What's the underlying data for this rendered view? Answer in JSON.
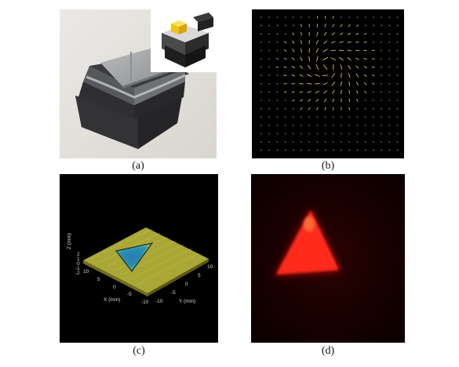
{
  "figure": {
    "captions": {
      "a": "(a)",
      "b": "(b)",
      "c": "(c)",
      "d": "(d)"
    },
    "panel_c": {
      "x_axis_label": "X (mm)",
      "y_axis_label": "Y (mm)",
      "z_axis_label": "Z (mm)",
      "x_ticks": [
        "-10",
        "-5",
        "0",
        "5",
        "10"
      ],
      "y_ticks": [
        "-10",
        "-5",
        "0",
        "5",
        "10"
      ],
      "z_ticks": [
        "2",
        "1",
        "0",
        "-1",
        "-2"
      ]
    },
    "colors": {
      "field_arrows": "#d6c84a",
      "field_dots": "#8a8a55",
      "surface": "#b8b23a",
      "depression": "#2a8fa8",
      "red_glow": "#ff2a1a",
      "cube": "#f2c21c"
    }
  }
}
